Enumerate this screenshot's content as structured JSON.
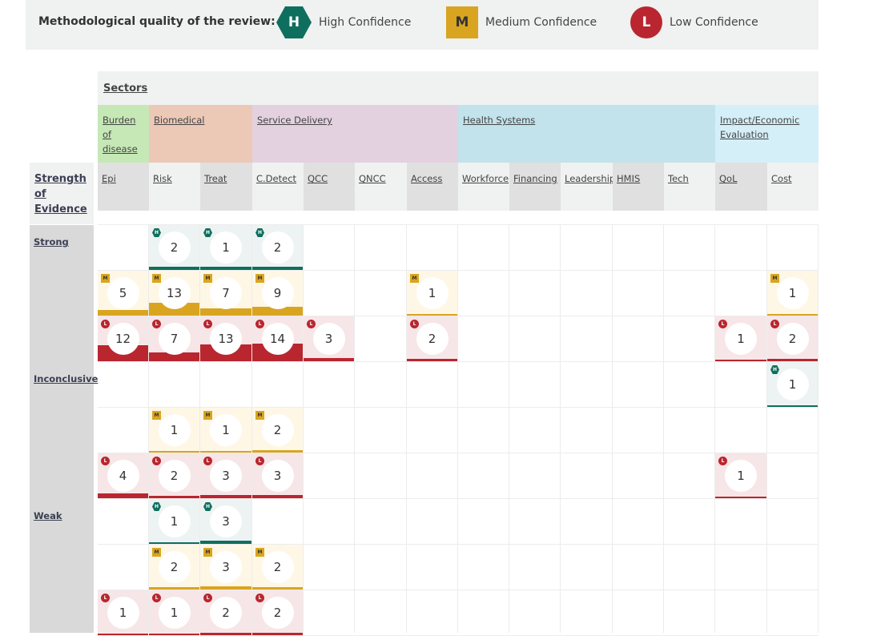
{
  "legend": {
    "title": "Methodological quality of the review:",
    "items": [
      {
        "key": "H",
        "label": "High Confidence"
      },
      {
        "key": "M",
        "label": "Medium Confidence"
      },
      {
        "key": "L",
        "label": "Low Confidence"
      }
    ]
  },
  "sectors_label": "Sectors",
  "strength_label": "Strength of Evidence",
  "colors": {
    "high": "#0f6f5e",
    "medium": "#d9a520",
    "low": "#b9262f"
  },
  "groups": [
    {
      "label": "Burden of disease",
      "color": "#c6e8b6"
    },
    {
      "label": "Biomedical",
      "color": "#ecc8b6"
    },
    {
      "label": "Service Delivery",
      "color": "#e3d1e0"
    },
    {
      "label": "Health Systems",
      "color": "#c2e2ec"
    },
    {
      "label": "Impact/Economic Evaluation",
      "color": "#d5eff9"
    }
  ],
  "columns": [
    "Epi",
    "Risk",
    "Treat",
    "C.Detect",
    "QCC",
    "QNCC",
    "Access",
    "Workforce",
    "Financing",
    "Leadership",
    "HMIS",
    "Tech",
    "QoL",
    "Cost"
  ],
  "strengths": [
    "Strong",
    "Inconclusive",
    "Weak"
  ],
  "rows": [
    {
      "strength": "Strong",
      "quality": "H",
      "cells": [
        [
          1,
          2,
          0.08
        ],
        [
          2,
          1,
          0.08
        ],
        [
          3,
          2,
          0.08
        ]
      ]
    },
    {
      "strength": "Strong",
      "quality": "M",
      "cells": [
        [
          0,
          5,
          0.12
        ],
        [
          1,
          13,
          0.28
        ],
        [
          2,
          7,
          0.16
        ],
        [
          3,
          9,
          0.2
        ],
        [
          6,
          1,
          0.04
        ],
        [
          13,
          1,
          0.04
        ]
      ]
    },
    {
      "strength": "Strong",
      "quality": "L",
      "cells": [
        [
          0,
          12,
          0.36
        ],
        [
          1,
          7,
          0.2
        ],
        [
          2,
          13,
          0.38
        ],
        [
          3,
          14,
          0.4
        ],
        [
          4,
          3,
          0.08
        ],
        [
          6,
          2,
          0.06
        ],
        [
          12,
          1,
          0.03
        ],
        [
          13,
          2,
          0.06
        ]
      ]
    },
    {
      "strength": "Inconclusive",
      "quality": "H",
      "cells": [
        [
          13,
          1,
          0.04
        ]
      ]
    },
    {
      "strength": "Inconclusive",
      "quality": "M",
      "cells": [
        [
          1,
          1,
          0.04
        ],
        [
          2,
          1,
          0.04
        ],
        [
          3,
          2,
          0.06
        ]
      ]
    },
    {
      "strength": "Inconclusive",
      "quality": "L",
      "cells": [
        [
          0,
          4,
          0.1
        ],
        [
          1,
          2,
          0.06
        ],
        [
          2,
          3,
          0.08
        ],
        [
          3,
          3,
          0.08
        ],
        [
          12,
          1,
          0.03
        ]
      ]
    },
    {
      "strength": "Weak",
      "quality": "H",
      "cells": [
        [
          1,
          1,
          0.04
        ],
        [
          2,
          3,
          0.08
        ]
      ]
    },
    {
      "strength": "Weak",
      "quality": "M",
      "cells": [
        [
          1,
          2,
          0.06
        ],
        [
          2,
          3,
          0.08
        ],
        [
          3,
          2,
          0.06
        ]
      ]
    },
    {
      "strength": "Weak",
      "quality": "L",
      "cells": [
        [
          0,
          1,
          0.04
        ],
        [
          1,
          1,
          0.04
        ],
        [
          2,
          2,
          0.06
        ],
        [
          3,
          2,
          0.06
        ]
      ]
    }
  ]
}
